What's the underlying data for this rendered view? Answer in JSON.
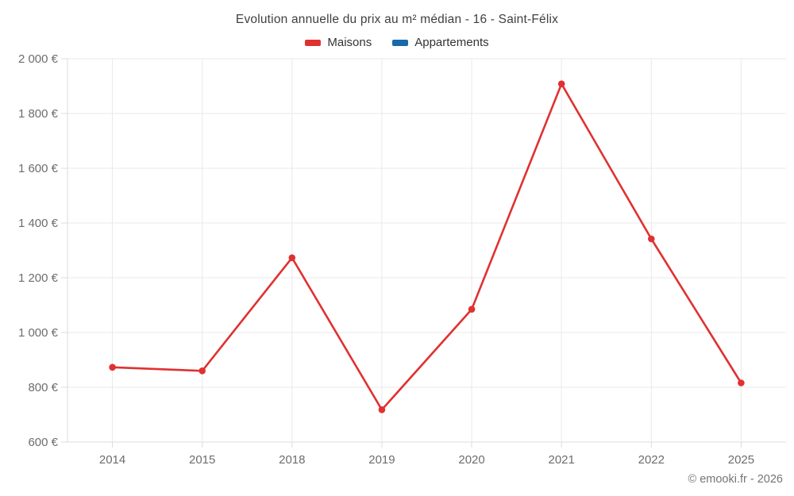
{
  "chart_data": {
    "type": "line",
    "title": "Evolution annuelle du prix au m² médian - 16 - Saint-Félix",
    "categories": [
      "2014",
      "2015",
      "2018",
      "2019",
      "2020",
      "2021",
      "2022",
      "2025"
    ],
    "series": [
      {
        "name": "Maisons",
        "color": "#e03131",
        "values": [
          873,
          860,
          1273,
          718,
          1085,
          1908,
          1342,
          816
        ]
      },
      {
        "name": "Appartements",
        "color": "#1769aa",
        "values": []
      }
    ],
    "xlabel": "",
    "ylabel": "",
    "ylim": [
      600,
      2000
    ],
    "ytick_step": 200,
    "ytick_suffix": "€",
    "grid": true,
    "legend_position": "top",
    "marker": "circle",
    "colors": {
      "grid": "#e9e9e9",
      "axis": "#dcdcdc",
      "tick_label": "#6d6d6d",
      "title_text": "#3f3f3f",
      "legend_text": "#333333",
      "background": "#ffffff"
    }
  },
  "footer": {
    "copyright": "© emooki.fr - 2026"
  }
}
